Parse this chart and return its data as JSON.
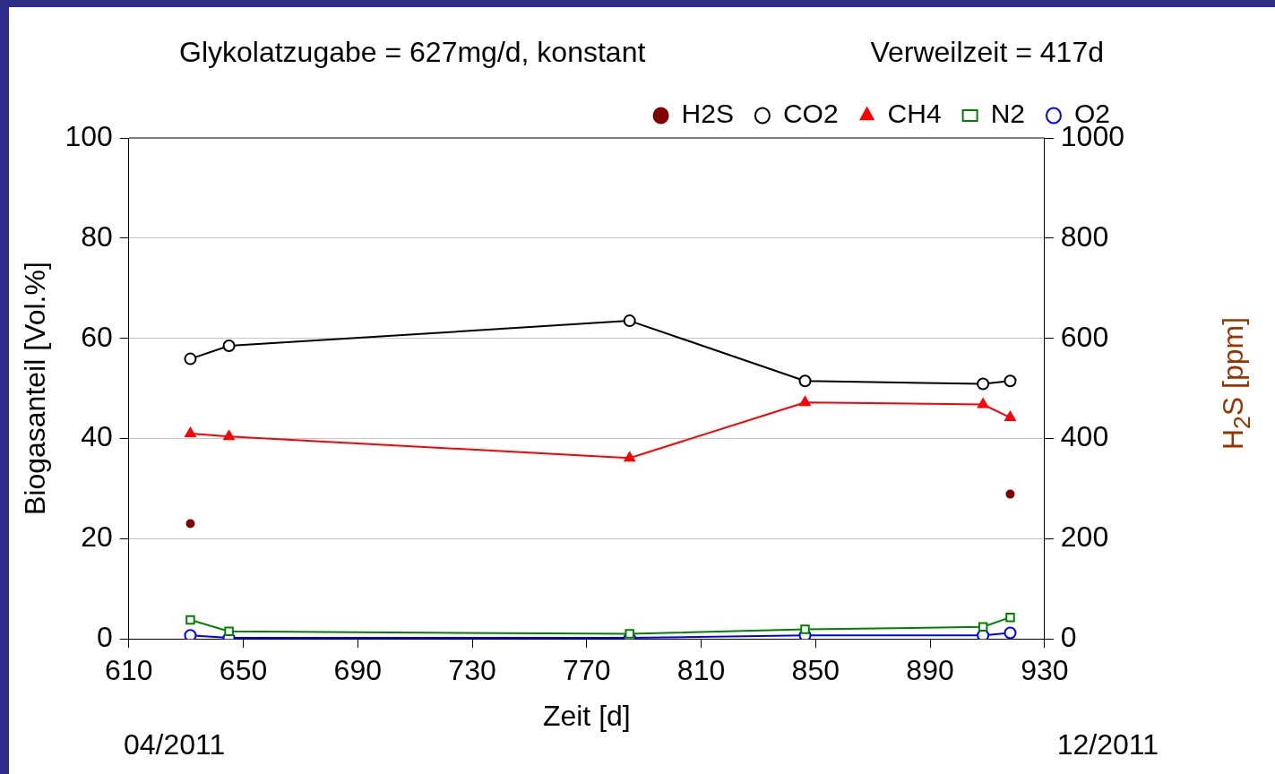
{
  "chart_data": {
    "type": "line",
    "title": "Glykolatzugabe = 627mg/d, konstant",
    "subtitle": "Verweilzeit = 417d",
    "xlabel": "Zeit [d]",
    "ylabel": "Biogasanteil [Vol.%]",
    "y2label": "H$_{2}$S [ppm]",
    "annotations": [
      "04/2011",
      "12/2011"
    ],
    "xlim": [
      610,
      930
    ],
    "xticks": [
      610,
      650,
      690,
      730,
      770,
      810,
      850,
      890,
      930
    ],
    "ylim": [
      0,
      100
    ],
    "yticks": [
      0,
      20,
      40,
      60,
      80,
      100
    ],
    "y2lim": [
      0,
      1000
    ],
    "y2ticks": [
      0,
      200,
      400,
      600,
      800,
      1000
    ],
    "grid": "y",
    "legend": "top right",
    "line_style": "solid",
    "x": [
      631.5,
      645,
      785,
      846.3,
      908.5,
      918
    ],
    "series": [
      {
        "name": "O2",
        "color": "#0000ff",
        "marker": "circle",
        "values": [
          0.7,
          0.2,
          0.2,
          0.7,
          0.7,
          1.2
        ]
      },
      {
        "name": "N2",
        "color": "#008000",
        "marker": "square",
        "values": [
          3.8,
          1.5,
          1.0,
          1.9,
          2.4,
          4.3
        ]
      },
      {
        "name": "CH4",
        "color": "#ff0000",
        "marker": "triangle",
        "values": [
          41,
          40.4,
          36.1,
          47.2,
          46.8,
          44.2
        ]
      },
      {
        "name": "CO2",
        "color": "#000000",
        "marker": "circle",
        "values": [
          55.9,
          58.5,
          63.5,
          51.5,
          50.9,
          51.5
        ]
      },
      {
        "name": "H2S",
        "type": "scatter",
        "axis": "y2",
        "color": "#800000",
        "marker": "circle",
        "x": [
          631.5,
          918
        ],
        "values": [
          230,
          289
        ]
      }
    ]
  }
}
